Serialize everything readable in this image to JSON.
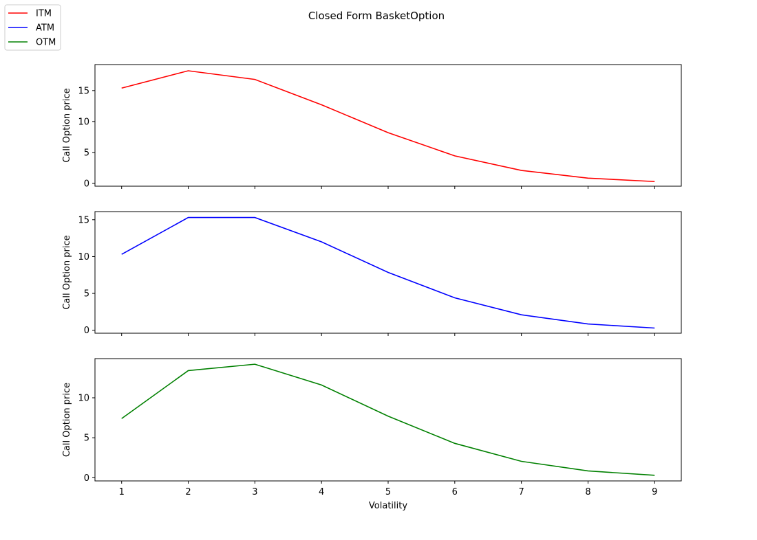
{
  "chart_data": {
    "type": "line",
    "title": "Closed Form BasketOption",
    "xlabel": "Volatility",
    "x": [
      1,
      2,
      3,
      4,
      5,
      6,
      7,
      8,
      9
    ],
    "x_ticks": [
      "1",
      "2",
      "3",
      "4",
      "5",
      "6",
      "7",
      "8",
      "9"
    ],
    "xlim": [
      0.6,
      9.4
    ],
    "shared_x": true,
    "legend_position": "upper-left",
    "grid": false,
    "subplots": [
      {
        "ylabel": "Call Option price",
        "ylim": [
          -0.45,
          19.2
        ],
        "y_ticks": [
          0,
          5,
          10,
          15
        ],
        "series": [
          {
            "name": "ITM",
            "color": "#ff0000",
            "values": [
              15.4,
              18.2,
              16.8,
              12.7,
              8.2,
              4.45,
              2.1,
              0.85,
              0.3
            ]
          }
        ]
      },
      {
        "ylabel": "Call Option price",
        "ylim": [
          -0.4,
          16.1
        ],
        "y_ticks": [
          0,
          5,
          10,
          15
        ],
        "series": [
          {
            "name": "ATM",
            "color": "#0000ff",
            "values": [
              10.3,
              15.3,
              15.3,
              12.0,
              7.85,
              4.4,
              2.1,
              0.85,
              0.3
            ]
          }
        ]
      },
      {
        "ylabel": "Call Option price",
        "ylim": [
          -0.4,
          14.9
        ],
        "y_ticks": [
          0,
          5,
          10
        ],
        "series": [
          {
            "name": "OTM",
            "color": "#008000",
            "values": [
              7.4,
              13.4,
              14.2,
              11.6,
              7.7,
              4.3,
              2.05,
              0.85,
              0.3
            ]
          }
        ]
      }
    ]
  }
}
